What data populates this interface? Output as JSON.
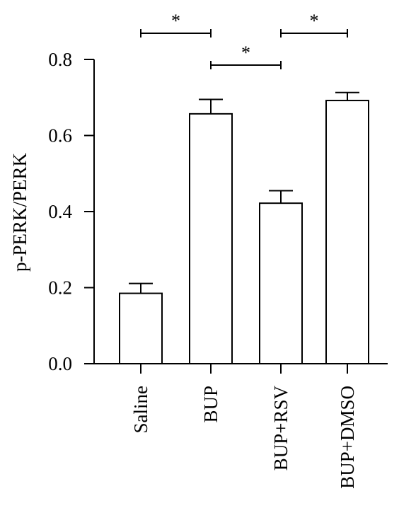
{
  "chart_data": {
    "type": "bar",
    "title": "",
    "xlabel": "",
    "ylabel": "p-PERK/PERK",
    "ylim": [
      0,
      0.8
    ],
    "yticks": [
      0.0,
      0.2,
      0.4,
      0.6,
      0.8
    ],
    "ytick_labels": [
      "0.0",
      "0.2",
      "0.4",
      "0.6",
      "0.8"
    ],
    "categories": [
      "Saline",
      "BUP",
      "BUP+RSV",
      "BUP+DMSO"
    ],
    "values": [
      0.185,
      0.657,
      0.422,
      0.692
    ],
    "errors": [
      0.026,
      0.038,
      0.033,
      0.021
    ],
    "bar_fill": "#ffffff",
    "stroke_color": "#000000",
    "grid": false,
    "legend": "none",
    "significance": [
      {
        "from": "Saline",
        "to": "BUP",
        "label": "*"
      },
      {
        "from": "BUP",
        "to": "BUP+RSV",
        "label": "*"
      },
      {
        "from": "BUP+RSV",
        "to": "BUP+DMSO",
        "label": "*"
      }
    ]
  }
}
